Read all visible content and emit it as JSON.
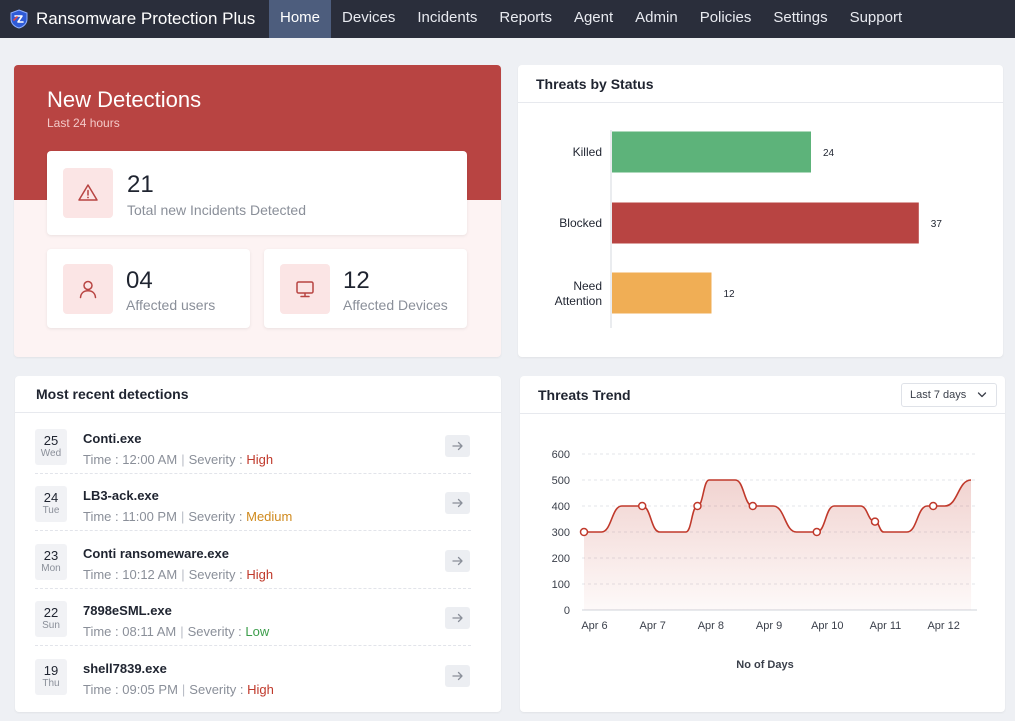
{
  "app": {
    "title": "Ransomware Protection Plus",
    "accent": "#b84442",
    "nav": [
      {
        "label": "Home",
        "active": true
      },
      {
        "label": "Devices"
      },
      {
        "label": "Incidents"
      },
      {
        "label": "Reports"
      },
      {
        "label": "Agent"
      },
      {
        "label": "Admin"
      },
      {
        "label": "Policies"
      },
      {
        "label": "Settings"
      },
      {
        "label": "Support"
      }
    ]
  },
  "new_detections": {
    "title": "New Detections",
    "subtitle": "Last 24 hours",
    "total": {
      "value": "21",
      "label": "Total new Incidents Detected",
      "icon": "warning-icon"
    },
    "users": {
      "value": "04",
      "label": "Affected users",
      "icon": "user-icon"
    },
    "devices": {
      "value": "12",
      "label": "Affected Devices",
      "icon": "monitor-icon"
    }
  },
  "threats_by_status": {
    "title": "Threats by Status"
  },
  "recent": {
    "title": "Most recent detections",
    "time_prefix": "Time : ",
    "severity_prefix": "Severity : ",
    "items": [
      {
        "day": "25",
        "weekday": "Wed",
        "name": "Conti.exe",
        "time": "12:00 AM",
        "severity": "High"
      },
      {
        "day": "24",
        "weekday": "Tue",
        "name": "LB3-ack.exe",
        "time": "11:00 PM",
        "severity": "Medium"
      },
      {
        "day": "23",
        "weekday": "Mon",
        "name": "Conti ransomeware.exe",
        "time": "10:12 AM",
        "severity": "High"
      },
      {
        "day": "22",
        "weekday": "Sun",
        "name": "7898eSML.exe",
        "time": "08:11 AM",
        "severity": "Low"
      },
      {
        "day": "19",
        "weekday": "Thu",
        "name": "shell7839.exe",
        "time": "09:05 PM",
        "severity": "High"
      }
    ]
  },
  "trend": {
    "title": "Threats Trend",
    "range_label": "Last 7 days"
  },
  "chart_data": [
    {
      "type": "bar",
      "orientation": "horizontal",
      "title": "Threats by Status",
      "categories": [
        "Killed",
        "Blocked",
        "Need Attention"
      ],
      "values": [
        24,
        37,
        12
      ],
      "colors": [
        "#5db37a",
        "#b84442",
        "#f0ae55"
      ]
    },
    {
      "type": "area",
      "title": "Threats Trend",
      "xlabel": "No of Days",
      "ylabel": "",
      "x": [
        "Apr 6",
        "Apr 7",
        "Apr 8",
        "Apr 9",
        "Apr 10",
        "Apr 11",
        "Apr 12"
      ],
      "y": [
        300,
        400,
        400,
        400,
        300,
        340,
        400
      ],
      "curve_points": [
        [
          0,
          300
        ],
        [
          0.3,
          300
        ],
        [
          0.65,
          400
        ],
        [
          1.0,
          400
        ],
        [
          1.3,
          300
        ],
        [
          1.75,
          300
        ],
        [
          1.95,
          400
        ],
        [
          2.15,
          500
        ],
        [
          2.6,
          500
        ],
        [
          2.9,
          400
        ],
        [
          3.25,
          400
        ],
        [
          3.65,
          300
        ],
        [
          4.0,
          300
        ],
        [
          4.3,
          400
        ],
        [
          4.75,
          400
        ],
        [
          5.0,
          340
        ],
        [
          5.15,
          300
        ],
        [
          5.55,
          300
        ],
        [
          5.9,
          400
        ],
        [
          6.2,
          400
        ],
        [
          6.65,
          500
        ]
      ],
      "markers": [
        [
          0,
          300
        ],
        [
          1.0,
          400
        ],
        [
          1.95,
          400
        ],
        [
          2.9,
          400
        ],
        [
          4.0,
          300
        ],
        [
          5.0,
          340
        ],
        [
          6.0,
          400
        ]
      ],
      "ylim": [
        0,
        600
      ],
      "yticks": [
        0,
        100,
        200,
        300,
        400,
        500,
        600
      ],
      "color": "#c0392b",
      "grid": true
    }
  ]
}
